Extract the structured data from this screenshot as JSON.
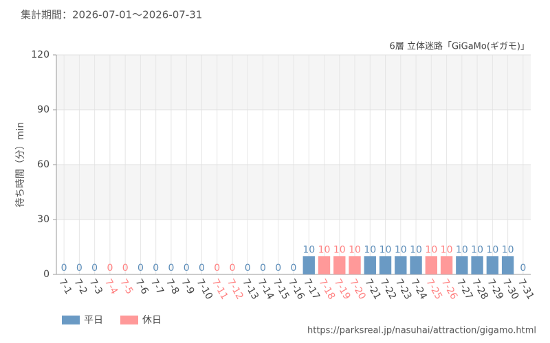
{
  "chart_data": {
    "type": "bar",
    "title": "集計期間：2026-07-01～2026-07-31",
    "subtitle": "6層 立体迷路「GiGaMo(ギガモ)」",
    "y_label": "待ち時間（分）min",
    "source": "https://parksreal.jp/nasuhai/attraction/gigamo.html",
    "categories": [
      "7-1",
      "7-2",
      "7-3",
      "7-4",
      "7-5",
      "7-6",
      "7-7",
      "7-8",
      "7-9",
      "7-10",
      "7-11",
      "7-12",
      "7-13",
      "7-14",
      "7-15",
      "7-16",
      "7-17",
      "7-18",
      "7-19",
      "7-20",
      "7-21",
      "7-22",
      "7-23",
      "7-24",
      "7-25",
      "7-26",
      "7-27",
      "7-28",
      "7-29",
      "7-30",
      "7-31"
    ],
    "series": [
      {
        "name": "平日",
        "color": "#6a9ac4",
        "label_color": "#5b8cb8",
        "values": [
          0,
          0,
          0,
          null,
          null,
          0,
          0,
          0,
          0,
          0,
          null,
          null,
          0,
          0,
          0,
          0,
          10,
          null,
          null,
          null,
          10,
          10,
          10,
          10,
          null,
          null,
          10,
          10,
          10,
          10,
          0
        ]
      },
      {
        "name": "休日",
        "color": "#ff9999",
        "label_color": "#ff8080",
        "values": [
          null,
          null,
          null,
          0,
          0,
          null,
          null,
          null,
          null,
          null,
          0,
          0,
          null,
          null,
          null,
          null,
          null,
          10,
          10,
          10,
          null,
          null,
          null,
          null,
          10,
          10,
          null,
          null,
          null,
          null,
          null
        ]
      }
    ],
    "ylim": [
      0,
      120
    ],
    "yticks": [
      0,
      30,
      60,
      90,
      120
    ],
    "grid": true
  }
}
